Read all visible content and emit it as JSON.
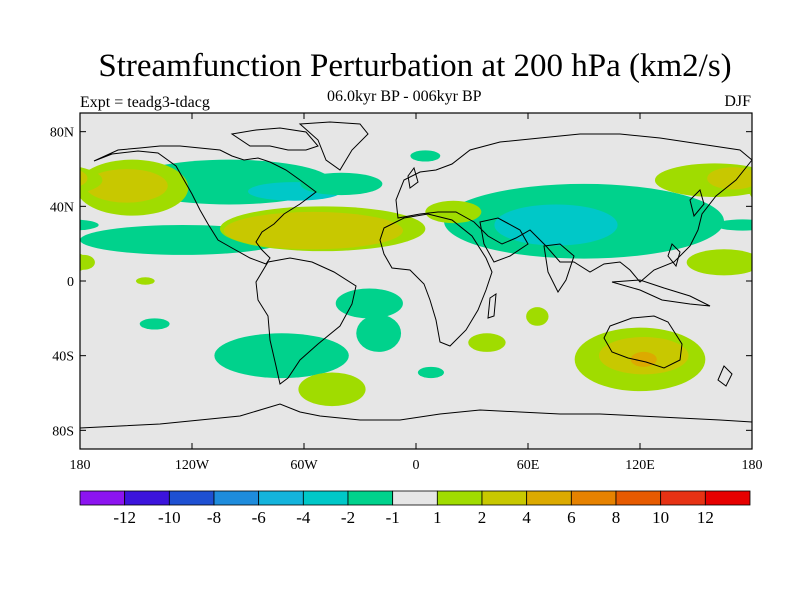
{
  "title": "Streamfunction Perturbation at 200 hPa (km2/s)",
  "subtitle": "06.0kyr BP - 006kyr BP",
  "experiment": "Expt = teadg3-tdacg",
  "season": "DJF",
  "map": {
    "projection": "cylindrical equidistant",
    "lon_range": [
      -180,
      180
    ],
    "lat_range": [
      -90,
      90
    ],
    "lat_ticks": [
      {
        "lat": 80,
        "label": "80N"
      },
      {
        "lat": 40,
        "label": "40N"
      },
      {
        "lat": 0,
        "label": "0"
      },
      {
        "lat": -40,
        "label": "40S"
      },
      {
        "lat": -80,
        "label": "80S"
      }
    ],
    "lon_ticks": [
      {
        "lon": -180,
        "label": "180"
      },
      {
        "lon": -120,
        "label": "120W"
      },
      {
        "lon": -60,
        "label": "60W"
      },
      {
        "lon": 0,
        "label": "0"
      },
      {
        "lon": 60,
        "label": "60E"
      },
      {
        "lon": 120,
        "label": "120E"
      },
      {
        "lon": 180,
        "label": "180"
      }
    ],
    "background_color": "#e6e6e6",
    "fields": [
      {
        "level": "-2",
        "color": "#00d28c",
        "lon": -125,
        "lat": 22,
        "rlon": 55,
        "rlat": 8
      },
      {
        "level": "-2",
        "color": "#00d28c",
        "lon": -100,
        "lat": 53,
        "rlon": 55,
        "rlat": 12
      },
      {
        "level": "-4",
        "color": "#00c8c8",
        "lon": -65,
        "lat": 48,
        "rlon": 25,
        "rlat": 5
      },
      {
        "level": "-2",
        "color": "#00d28c",
        "lon": -40,
        "lat": 52,
        "rlon": 22,
        "rlat": 6
      },
      {
        "level": "-2",
        "color": "#00d28c",
        "lon": 5,
        "lat": 67,
        "rlon": 8,
        "rlat": 3
      },
      {
        "level": "-2",
        "color": "#00d28c",
        "lon": 90,
        "lat": 32,
        "rlon": 75,
        "rlat": 20
      },
      {
        "level": "-4",
        "color": "#00c8c8",
        "lon": 75,
        "lat": 30,
        "rlon": 33,
        "rlat": 11
      },
      {
        "level": "-2",
        "color": "#00d28c",
        "lon": -25,
        "lat": -12,
        "rlon": 18,
        "rlat": 8
      },
      {
        "level": "-2",
        "color": "#00d28c",
        "lon": -20,
        "lat": -28,
        "rlon": 12,
        "rlat": 10
      },
      {
        "level": "-2",
        "color": "#00d28c",
        "lon": -72,
        "lat": -40,
        "rlon": 36,
        "rlat": 12
      },
      {
        "level": "-2",
        "color": "#00d28c",
        "lon": -140,
        "lat": -23,
        "rlon": 8,
        "rlat": 3
      },
      {
        "level": "-2",
        "color": "#00d28c",
        "lon": 8,
        "lat": -49,
        "rlon": 7,
        "rlat": 3
      },
      {
        "level": "-2",
        "color": "#00d28c",
        "lon": 175,
        "lat": 30,
        "rlon": 15,
        "rlat": 3
      },
      {
        "level": "1",
        "color": "#a0dc00",
        "lon": -152,
        "lat": 50,
        "rlon": 30,
        "rlat": 15
      },
      {
        "level": "2",
        "color": "#c8c800",
        "lon": -155,
        "lat": 51,
        "rlon": 22,
        "rlat": 9
      },
      {
        "level": "1",
        "color": "#a0dc00",
        "lon": -50,
        "lat": 28,
        "rlon": 55,
        "rlat": 12
      },
      {
        "level": "2",
        "color": "#c8c800",
        "lon": -55,
        "lat": 27,
        "rlon": 48,
        "rlat": 10
      },
      {
        "level": "1",
        "color": "#a0dc00",
        "lon": 20,
        "lat": 37,
        "rlon": 15,
        "rlat": 6
      },
      {
        "level": "1",
        "color": "#a0dc00",
        "lon": 160,
        "lat": 54,
        "rlon": 32,
        "rlat": 9
      },
      {
        "level": "2",
        "color": "#c8c800",
        "lon": 170,
        "lat": 55,
        "rlon": 14,
        "rlat": 6
      },
      {
        "level": "1",
        "color": "#a0dc00",
        "lon": 165,
        "lat": 10,
        "rlon": 20,
        "rlat": 7
      },
      {
        "level": "1",
        "color": "#a0dc00",
        "lon": 120,
        "lat": -42,
        "rlon": 35,
        "rlat": 17
      },
      {
        "level": "2",
        "color": "#c8c800",
        "lon": 122,
        "lat": -40,
        "rlon": 24,
        "rlat": 10
      },
      {
        "level": "4",
        "color": "#dcaa00",
        "lon": 122,
        "lat": -42,
        "rlon": 7,
        "rlat": 4
      },
      {
        "level": "1",
        "color": "#a0dc00",
        "lon": -45,
        "lat": -58,
        "rlon": 18,
        "rlat": 9
      },
      {
        "level": "1",
        "color": "#a0dc00",
        "lon": 38,
        "lat": -33,
        "rlon": 10,
        "rlat": 5
      },
      {
        "level": "1",
        "color": "#a0dc00",
        "lon": 65,
        "lat": -19,
        "rlon": 6,
        "rlat": 5
      },
      {
        "level": "1",
        "color": "#a0dc00",
        "lon": -145,
        "lat": 0,
        "rlon": 5,
        "rlat": 2
      },
      {
        "level": "1",
        "color": "#a0dc00",
        "lon": -178,
        "lat": 10,
        "rlon": 6,
        "rlat": 4
      }
    ]
  },
  "colorbar": {
    "colors": [
      "#8c14f0",
      "#3c14dc",
      "#1e50d2",
      "#1e8cdc",
      "#14b4dc",
      "#00c8c8",
      "#00d28c",
      "#e6e6e6",
      "#a0dc00",
      "#c8c800",
      "#dcaa00",
      "#e68200",
      "#e65a00",
      "#e63214",
      "#e60000"
    ],
    "labels": [
      "-12",
      "-10",
      "-8",
      "-6",
      "-4",
      "-2",
      "-1",
      "1",
      "2",
      "4",
      "6",
      "8",
      "10",
      "12"
    ]
  }
}
